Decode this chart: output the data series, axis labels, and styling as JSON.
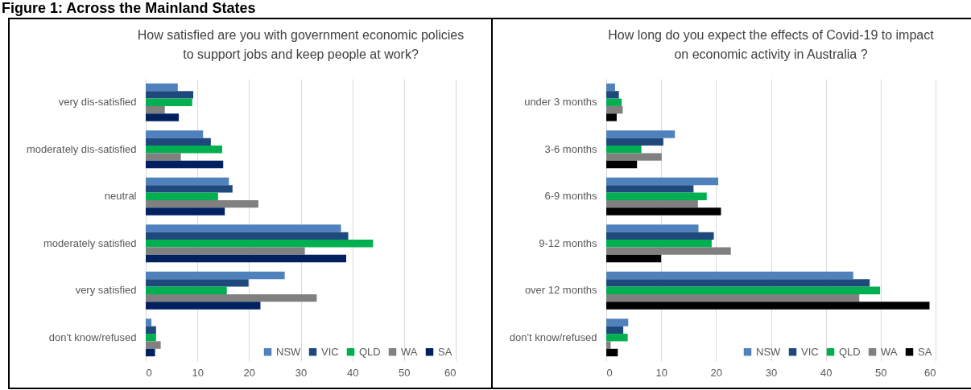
{
  "chart_data": [
    {
      "type": "bar",
      "orientation": "horizontal",
      "title": "How satisfied are you with government economic policies to support jobs and keep people at work?",
      "annotations": [
        "Figure 1: Across the Mainland States"
      ],
      "categories": [
        "very dis-satisfied",
        "moderately dis-satisfied",
        "neutral",
        "moderately satisfied",
        "very satisfied",
        "don't know/refused"
      ],
      "series": [
        {
          "name": "NSW",
          "color": "#4f81bd",
          "values": [
            6.2,
            11.1,
            16.1,
            37.8,
            26.9,
            1.1
          ]
        },
        {
          "name": "VIC",
          "color": "#1f497d",
          "values": [
            9.2,
            12.6,
            16.8,
            39.2,
            19.9,
            2.0
          ]
        },
        {
          "name": "QLD",
          "color": "#00b050",
          "values": [
            9.0,
            14.8,
            14.0,
            44.0,
            15.7,
            2.0
          ]
        },
        {
          "name": "WA",
          "color": "#808080",
          "values": [
            3.7,
            6.8,
            21.8,
            30.8,
            33.1,
            2.9
          ]
        },
        {
          "name": "SA",
          "color": "#002060",
          "values": [
            6.4,
            15.0,
            15.3,
            38.8,
            22.2,
            1.8
          ]
        }
      ],
      "xlim": [
        0,
        60
      ],
      "xticks": [
        0,
        10,
        20,
        30,
        40,
        50,
        60
      ],
      "grid": "x",
      "legend": "bottom right"
    },
    {
      "type": "bar",
      "orientation": "horizontal",
      "title": "How long do you expect the effects of Covid-19 to impact on economic activity in Australia ?",
      "categories": [
        "under 3 months",
        "3-6 months",
        "6-9 months",
        "9-12 months",
        "over 12 months",
        "don't know/refused"
      ],
      "series": [
        {
          "name": "NSW",
          "color": "#4f81bd",
          "values": [
            1.6,
            12.5,
            20.4,
            16.8,
            45.0,
            4.0
          ]
        },
        {
          "name": "VIC",
          "color": "#1f497d",
          "values": [
            2.3,
            10.4,
            15.9,
            19.6,
            48.0,
            3.1
          ]
        },
        {
          "name": "QLD",
          "color": "#00b050",
          "values": [
            2.8,
            6.4,
            18.3,
            19.2,
            49.9,
            3.9
          ]
        },
        {
          "name": "WA",
          "color": "#808080",
          "values": [
            3.0,
            10.1,
            16.7,
            22.7,
            46.1,
            0.8
          ]
        },
        {
          "name": "SA",
          "color": "#000000",
          "values": [
            1.9,
            5.6,
            20.9,
            10.0,
            58.9,
            2.1
          ]
        }
      ],
      "xlim": [
        0,
        60
      ],
      "xticks": [
        0,
        10,
        20,
        30,
        40,
        50,
        60
      ],
      "grid": "x",
      "legend": "bottom right"
    }
  ]
}
